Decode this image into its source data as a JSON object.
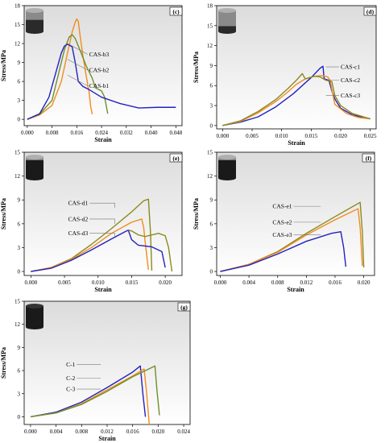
{
  "chart_data": [
    {
      "panel": "(c)",
      "type": "line",
      "xlabel": "Strain",
      "ylabel": "Stress/MPa",
      "xlim": [
        -0.001,
        0.05
      ],
      "ylim": [
        -1,
        18
      ],
      "xticks": [
        "0.000",
        "0.008",
        "0.016",
        "0.024",
        "0.032",
        "0.040",
        "0.048"
      ],
      "xtick_values": [
        0.0,
        0.008,
        0.016,
        0.024,
        0.032,
        0.04,
        0.048
      ],
      "yticks": [
        "0",
        "3",
        "6",
        "9",
        "12",
        "15",
        "18"
      ],
      "ytick_values": [
        0,
        3,
        6,
        9,
        12,
        15,
        18
      ],
      "cylinder": {
        "cap": "#8a8a8a",
        "body": "#2a2a2a",
        "band_fraction": 0.55
      },
      "series": [
        {
          "name": "CAS-b3",
          "color": "#f28c1e",
          "x": [
            0.0,
            0.004,
            0.008,
            0.011,
            0.013,
            0.0145,
            0.0155,
            0.016,
            0.0165,
            0.017,
            0.018,
            0.019,
            0.02,
            0.0205,
            0.021
          ],
          "y": [
            0.0,
            0.7,
            2.2,
            6.0,
            10.5,
            13.8,
            15.4,
            15.9,
            15.5,
            13.5,
            10.0,
            7.0,
            4.2,
            2.0,
            0.8
          ]
        },
        {
          "name": "CAS-b2",
          "color": "#6e8f2b",
          "x": [
            0.0,
            0.004,
            0.008,
            0.01,
            0.012,
            0.0135,
            0.0145,
            0.0155,
            0.017,
            0.019,
            0.021,
            0.022,
            0.024,
            0.025,
            0.026
          ],
          "y": [
            0.0,
            0.8,
            3.0,
            7.0,
            11.0,
            13.0,
            13.4,
            12.8,
            11.0,
            8.5,
            6.5,
            5.0,
            4.5,
            3.5,
            0.9
          ]
        },
        {
          "name": "CAS-b1",
          "color": "#2222c0",
          "x": [
            0.0,
            0.004,
            0.007,
            0.009,
            0.011,
            0.012,
            0.013,
            0.0145,
            0.0155,
            0.0165,
            0.018,
            0.02,
            0.024,
            0.03,
            0.036,
            0.042,
            0.048
          ],
          "y": [
            0.0,
            0.9,
            3.5,
            7.0,
            10.5,
            11.6,
            11.9,
            11.5,
            9.0,
            6.0,
            5.2,
            4.7,
            3.5,
            2.5,
            1.8,
            1.9,
            1.9
          ]
        }
      ],
      "legend_order": [
        "CAS-b3",
        "CAS-b2",
        "CAS-b1"
      ]
    },
    {
      "panel": "(d)",
      "type": "line",
      "xlabel": "Strain",
      "ylabel": "Stress/MPa",
      "xlim": [
        -0.001,
        0.026
      ],
      "ylim": [
        -0.5,
        18
      ],
      "xticks": [
        "0.000",
        "0.005",
        "0.010",
        "0.015",
        "0.020",
        "0.025"
      ],
      "xtick_values": [
        0.0,
        0.005,
        0.01,
        0.015,
        0.02,
        0.025
      ],
      "yticks": [
        "0",
        "3",
        "6",
        "9",
        "12",
        "15",
        "18"
      ],
      "ytick_values": [
        0,
        3,
        6,
        9,
        12,
        15,
        18
      ],
      "cylinder": {
        "cap": "#8a8a8a",
        "body": "#2a2a2a",
        "band_fraction": 0.25
      },
      "series": [
        {
          "name": "CAS-c1",
          "color": "#2222c0",
          "x": [
            0.0,
            0.003,
            0.006,
            0.009,
            0.012,
            0.015,
            0.0165,
            0.017,
            0.0172,
            0.018,
            0.0185,
            0.019,
            0.02,
            0.022,
            0.025
          ],
          "y": [
            0.0,
            0.5,
            1.3,
            2.8,
            4.8,
            7.2,
            8.6,
            8.9,
            7.0,
            6.8,
            5.2,
            4.0,
            2.6,
            1.6,
            1.0
          ]
        },
        {
          "name": "CAS-c2",
          "color": "#f28c1e",
          "x": [
            0.0,
            0.003,
            0.006,
            0.009,
            0.011,
            0.0125,
            0.014,
            0.0155,
            0.017,
            0.0178,
            0.0182,
            0.019,
            0.021,
            0.023,
            0.025
          ],
          "y": [
            0.0,
            0.6,
            1.9,
            3.6,
            5.0,
            6.2,
            7.0,
            7.4,
            7.5,
            7.3,
            6.8,
            3.2,
            1.8,
            1.2,
            1.0
          ]
        },
        {
          "name": "CAS-c3",
          "color": "#8a8a20",
          "x": [
            0.0,
            0.003,
            0.006,
            0.009,
            0.011,
            0.0125,
            0.0135,
            0.014,
            0.0155,
            0.0165,
            0.0175,
            0.0185,
            0.019,
            0.02,
            0.022,
            0.025
          ],
          "y": [
            0.0,
            0.7,
            2.1,
            3.9,
            5.5,
            6.8,
            7.8,
            7.0,
            7.4,
            7.3,
            6.8,
            6.6,
            4.5,
            3.0,
            1.8,
            1.0
          ]
        }
      ],
      "legend_order": [
        "CAS-c1",
        "CAS-c2",
        "CAS-c3"
      ]
    },
    {
      "panel": "(e)",
      "type": "line",
      "xlabel": "Strain",
      "ylabel": "Stress/MPa",
      "xlim": [
        -0.001,
        0.0225
      ],
      "ylim": [
        -0.5,
        15
      ],
      "xticks": [
        "0.000",
        "0.005",
        "0.010",
        "0.015",
        "0.020"
      ],
      "xtick_values": [
        0.0,
        0.005,
        0.01,
        0.015,
        0.02
      ],
      "yticks": [
        "0",
        "3",
        "6",
        "9",
        "12",
        "15"
      ],
      "ytick_values": [
        0,
        3,
        6,
        9,
        12,
        15
      ],
      "cylinder": {
        "cap": "#8a8a8a",
        "body": "#1a1a1a",
        "band_fraction": 0.85
      },
      "series": [
        {
          "name": "CAS-d1",
          "color": "#8a8a20",
          "x": [
            0.0,
            0.003,
            0.006,
            0.009,
            0.012,
            0.015,
            0.0168,
            0.0175,
            0.0178,
            0.018
          ],
          "y": [
            0.0,
            0.5,
            1.6,
            3.4,
            5.4,
            7.5,
            8.9,
            9.1,
            5.0,
            0.1
          ]
        },
        {
          "name": "CAS-d2",
          "color": "#f28c1e",
          "x": [
            0.0,
            0.003,
            0.006,
            0.009,
            0.012,
            0.015,
            0.0165,
            0.0168,
            0.017,
            0.0175
          ],
          "y": [
            0.0,
            0.5,
            1.5,
            3.0,
            4.8,
            6.2,
            6.6,
            5.5,
            3.8,
            0.2
          ]
        },
        {
          "name": "CAS-d3",
          "color": "#2222c0",
          "x": [
            0.0,
            0.003,
            0.006,
            0.009,
            0.012,
            0.014,
            0.0145,
            0.015,
            0.016,
            0.018,
            0.0195,
            0.02
          ],
          "y": [
            0.0,
            0.4,
            1.4,
            2.7,
            4.1,
            5.0,
            5.2,
            4.0,
            3.3,
            3.1,
            2.5,
            0.5
          ]
        },
        {
          "name": "",
          "color": "#8a8a20",
          "x": [
            0.0145,
            0.015,
            0.016,
            0.017,
            0.018,
            0.019,
            0.02,
            0.0205,
            0.021
          ],
          "y": [
            5.2,
            5.1,
            4.6,
            4.4,
            4.6,
            4.8,
            4.5,
            3.0,
            0.0
          ]
        }
      ],
      "legend_order": [
        "CAS-d1",
        "CAS-d2",
        "CAS-d3"
      ]
    },
    {
      "panel": "(f)",
      "type": "line",
      "xlabel": "Strain",
      "ylabel": "Stress/MPa",
      "xlim": [
        -0.0005,
        0.0215
      ],
      "ylim": [
        -0.5,
        15
      ],
      "xticks": [
        "0.000",
        "0.004",
        "0.008",
        "0.012",
        "0.016",
        "0.020"
      ],
      "xtick_values": [
        0.0,
        0.004,
        0.008,
        0.012,
        0.016,
        0.02
      ],
      "yticks": [
        "0",
        "3",
        "6",
        "9",
        "12",
        "15"
      ],
      "ytick_values": [
        0,
        3,
        6,
        9,
        12,
        15
      ],
      "cylinder": {
        "cap": "#8a8a8a",
        "body": "#1a1a1a",
        "band_fraction": 0.85
      },
      "series": [
        {
          "name": "CAS-e1",
          "color": "#8a8a20",
          "x": [
            0.0,
            0.004,
            0.008,
            0.012,
            0.016,
            0.0195,
            0.0198,
            0.02
          ],
          "y": [
            0.0,
            0.9,
            2.5,
            4.8,
            6.9,
            8.7,
            5.0,
            0.5
          ]
        },
        {
          "name": "CAS-e2",
          "color": "#f28c1e",
          "x": [
            0.0,
            0.004,
            0.008,
            0.012,
            0.016,
            0.0192,
            0.0195,
            0.0198
          ],
          "y": [
            0.0,
            0.9,
            2.4,
            4.6,
            6.5,
            7.9,
            5.5,
            0.7
          ]
        },
        {
          "name": "CAS-e3",
          "color": "#2222c0",
          "x": [
            0.0,
            0.004,
            0.008,
            0.012,
            0.0155,
            0.0168,
            0.0172,
            0.0175
          ],
          "y": [
            0.0,
            0.8,
            2.2,
            3.8,
            4.8,
            5.0,
            3.0,
            0.6
          ]
        }
      ],
      "legend_order": [
        "CAS-e1",
        "CAS-e2",
        "CAS-e3"
      ]
    },
    {
      "panel": "(g)",
      "type": "line",
      "xlabel": "Strain",
      "ylabel": "Stress/MPa",
      "xlim": [
        -0.001,
        0.025
      ],
      "ylim": [
        -1,
        15
      ],
      "xticks": [
        "0.000",
        "0.004",
        "0.008",
        "0.012",
        "0.016",
        "0.020",
        "0.024"
      ],
      "xtick_values": [
        0.0,
        0.004,
        0.008,
        0.012,
        0.016,
        0.02,
        0.024
      ],
      "yticks": [
        "0",
        "3",
        "6",
        "9",
        "12",
        "15"
      ],
      "ytick_values": [
        0,
        3,
        6,
        9,
        12,
        15
      ],
      "cylinder": {
        "cap": "#1a1a1a",
        "body": "#1a1a1a",
        "band_fraction": 1.0
      },
      "series": [
        {
          "name": "C-1",
          "color": "#2222c0",
          "x": [
            0.0,
            0.004,
            0.008,
            0.012,
            0.016,
            0.0172,
            0.0176,
            0.018
          ],
          "y": [
            0.0,
            0.6,
            1.9,
            3.8,
            5.8,
            6.6,
            3.0,
            0.0
          ]
        },
        {
          "name": "C-2",
          "color": "#f28c1e",
          "x": [
            0.0,
            0.004,
            0.008,
            0.012,
            0.016,
            0.0178,
            0.0182,
            0.0186
          ],
          "y": [
            0.0,
            0.5,
            1.7,
            3.5,
            5.3,
            6.2,
            3.0,
            -1.0
          ]
        },
        {
          "name": "C-3",
          "color": "#6e8f2b",
          "x": [
            0.0,
            0.004,
            0.008,
            0.012,
            0.016,
            0.0195,
            0.0198,
            0.0202
          ],
          "y": [
            0.0,
            0.5,
            1.6,
            3.3,
            5.2,
            6.6,
            3.5,
            0.2
          ]
        }
      ],
      "legend_order": [
        "C-1",
        "C-2",
        "C-3"
      ]
    }
  ]
}
